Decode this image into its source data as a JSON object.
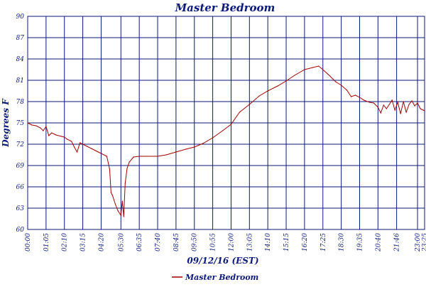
{
  "chart_data": {
    "type": "line",
    "title": "Master Bedroom",
    "xlabel": "09/12/16 (EST)",
    "ylabel": "Degrees F",
    "ylim": [
      60,
      90
    ],
    "y_ticks": [
      "60",
      "63",
      "66",
      "69",
      "72",
      "75",
      "78",
      "81",
      "84",
      "87",
      "90"
    ],
    "x_tick_labels": [
      "00:00",
      "01:05",
      "02:10",
      "03:15",
      "04:20",
      "05:30",
      "06:35",
      "07:40",
      "08:45",
      "09:50",
      "10:55",
      "12:00",
      "13:05",
      "14:10",
      "15:15",
      "16:20",
      "17:25",
      "18:30",
      "19:35",
      "20:40",
      "21:46",
      "23:00",
      "23:25"
    ],
    "grid": true,
    "legend_position": "bottom-center",
    "colors": {
      "series": "#a30000",
      "grid": "#0b1a78",
      "text": "#0b1a78"
    },
    "series": [
      {
        "name": "Master Bedroom",
        "points": [
          [
            "00:00",
            75.0
          ],
          [
            "00:15",
            74.7
          ],
          [
            "00:30",
            74.6
          ],
          [
            "00:45",
            74.3
          ],
          [
            "00:55",
            73.9
          ],
          [
            "01:05",
            74.5
          ],
          [
            "01:15",
            73.2
          ],
          [
            "01:25",
            73.6
          ],
          [
            "01:40",
            73.3
          ],
          [
            "02:00",
            73.1
          ],
          [
            "02:10",
            73.0
          ],
          [
            "02:20",
            72.7
          ],
          [
            "02:35",
            72.4
          ],
          [
            "02:45",
            71.6
          ],
          [
            "02:55",
            70.9
          ],
          [
            "03:05",
            72.2
          ],
          [
            "03:15",
            72.0
          ],
          [
            "03:30",
            71.7
          ],
          [
            "03:45",
            71.4
          ],
          [
            "04:00",
            71.1
          ],
          [
            "04:20",
            70.7
          ],
          [
            "04:40",
            70.3
          ],
          [
            "04:50",
            68.5
          ],
          [
            "04:55",
            65.2
          ],
          [
            "05:00",
            64.8
          ],
          [
            "05:10",
            63.6
          ],
          [
            "05:20",
            62.6
          ],
          [
            "05:30",
            62.0
          ],
          [
            "05:35",
            64.0
          ],
          [
            "05:40",
            61.8
          ],
          [
            "05:45",
            66.5
          ],
          [
            "05:52",
            68.6
          ],
          [
            "06:00",
            69.5
          ],
          [
            "06:15",
            70.2
          ],
          [
            "06:35",
            70.3
          ],
          [
            "07:00",
            70.3
          ],
          [
            "07:40",
            70.3
          ],
          [
            "08:10",
            70.5
          ],
          [
            "08:45",
            70.9
          ],
          [
            "09:20",
            71.3
          ],
          [
            "09:50",
            71.6
          ],
          [
            "10:20",
            72.1
          ],
          [
            "10:55",
            72.9
          ],
          [
            "11:30",
            73.9
          ],
          [
            "12:00",
            74.8
          ],
          [
            "12:30",
            76.5
          ],
          [
            "13:05",
            77.6
          ],
          [
            "13:40",
            78.8
          ],
          [
            "14:10",
            79.5
          ],
          [
            "14:45",
            80.2
          ],
          [
            "15:15",
            80.9
          ],
          [
            "15:45",
            81.7
          ],
          [
            "16:20",
            82.5
          ],
          [
            "16:50",
            82.8
          ],
          [
            "17:10",
            83.0
          ],
          [
            "17:25",
            82.5
          ],
          [
            "17:50",
            81.6
          ],
          [
            "18:10",
            80.8
          ],
          [
            "18:30",
            80.3
          ],
          [
            "18:50",
            79.6
          ],
          [
            "19:05",
            78.7
          ],
          [
            "19:20",
            78.9
          ],
          [
            "19:35",
            78.6
          ],
          [
            "19:50",
            78.2
          ],
          [
            "20:10",
            77.9
          ],
          [
            "20:25",
            77.8
          ],
          [
            "20:40",
            77.2
          ],
          [
            "20:50",
            76.4
          ],
          [
            "21:00",
            77.5
          ],
          [
            "21:10",
            77.0
          ],
          [
            "21:20",
            77.6
          ],
          [
            "21:30",
            78.2
          ],
          [
            "21:40",
            76.8
          ],
          [
            "21:50",
            77.9
          ],
          [
            "22:00",
            76.3
          ],
          [
            "22:10",
            78.0
          ],
          [
            "22:20",
            76.5
          ],
          [
            "22:30",
            77.6
          ],
          [
            "22:40",
            78.1
          ],
          [
            "22:50",
            77.4
          ],
          [
            "23:00",
            77.8
          ],
          [
            "23:10",
            77.0
          ],
          [
            "23:20",
            76.8
          ],
          [
            "23:25",
            76.7
          ]
        ]
      }
    ]
  }
}
